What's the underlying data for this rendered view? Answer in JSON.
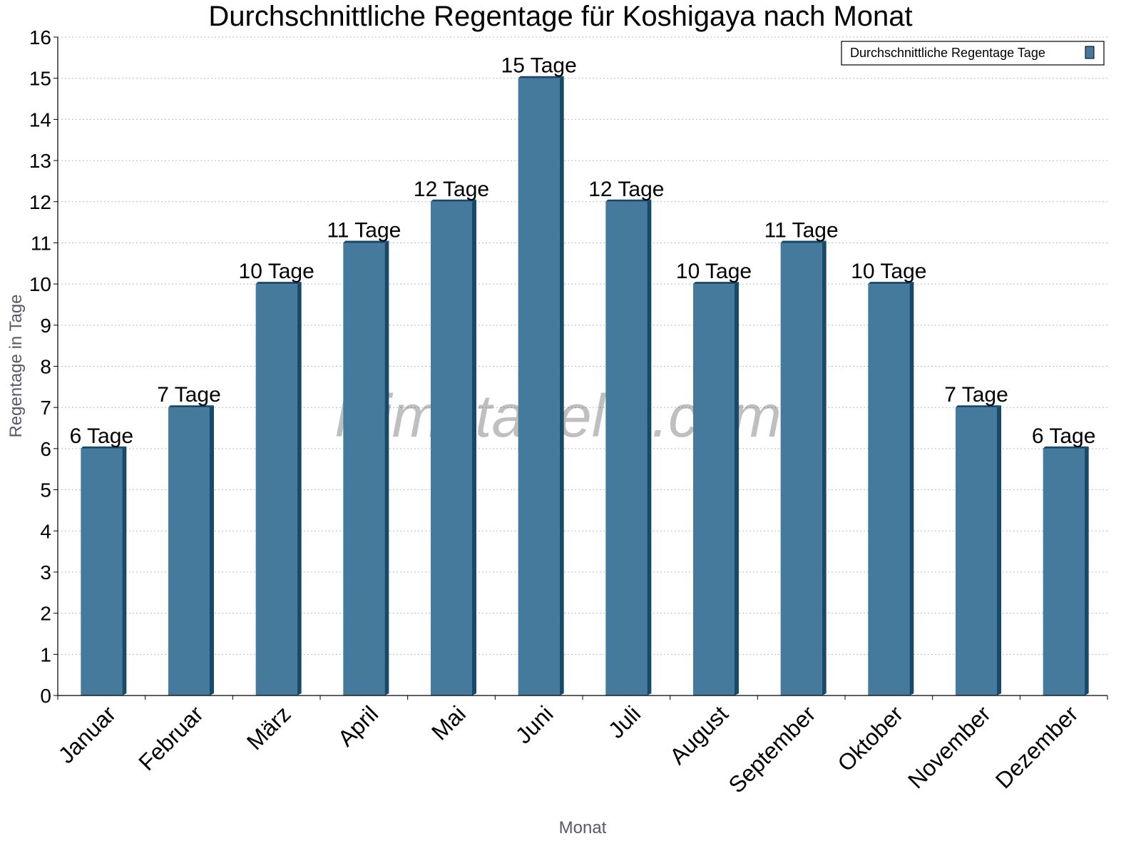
{
  "chart_data": {
    "type": "bar",
    "title": "Durchschnittliche Regentage für Koshigaya nach Monat",
    "xlabel": "Monat",
    "ylabel": "Regentage in Tage",
    "ylim": [
      0,
      16
    ],
    "yticks": [
      0,
      1,
      2,
      3,
      4,
      5,
      6,
      7,
      8,
      9,
      10,
      11,
      12,
      13,
      14,
      15,
      16
    ],
    "grid": true,
    "legend_position": "top-right",
    "categories": [
      "Januar",
      "Februar",
      "März",
      "April",
      "Mai",
      "Juni",
      "Juli",
      "August",
      "September",
      "Oktober",
      "November",
      "Dezember"
    ],
    "series": [
      {
        "name": "Durchschnittliche Regentage Tage",
        "values": [
          6,
          7,
          10,
          11,
          12,
          15,
          12,
          10,
          11,
          10,
          7,
          6
        ],
        "data_labels": [
          "6 Tage",
          "7 Tage",
          "10 Tage",
          "11 Tage",
          "12 Tage",
          "15 Tage",
          "12 Tage",
          "10 Tage",
          "11 Tage",
          "10 Tage",
          "7 Tage",
          "6 Tage"
        ],
        "color": "#457a9c",
        "side_color": "#17496b"
      }
    ],
    "watermark": "klimatabelle.com"
  }
}
